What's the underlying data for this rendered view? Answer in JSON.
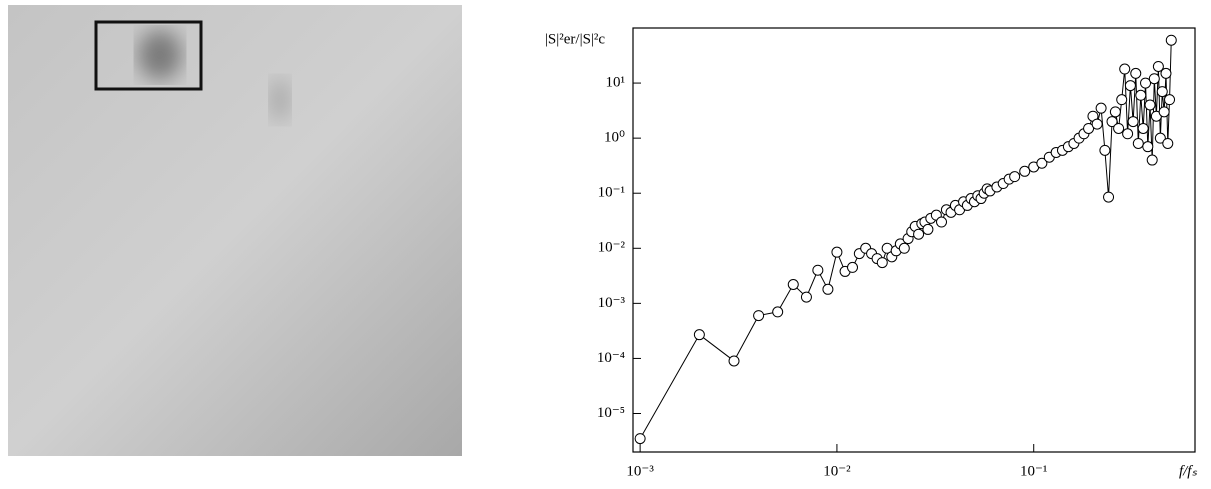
{
  "chart_data": {
    "type": "line",
    "xlabel": "f/fₛ",
    "ylabel": "|S|²er/|S|²c",
    "x_log": true,
    "y_log": true,
    "xlim": [
      0.00092,
      0.66
    ],
    "ylim": [
      2e-06,
      100
    ],
    "xticks": [
      {
        "value": 0.001,
        "label": "10⁻³"
      },
      {
        "value": 0.01,
        "label": "10⁻²"
      },
      {
        "value": 0.1,
        "label": "10⁻¹"
      }
    ],
    "yticks": [
      {
        "value": 1e-05,
        "label": "10⁻⁵"
      },
      {
        "value": 0.0001,
        "label": "10⁻⁴"
      },
      {
        "value": 0.001,
        "label": "10⁻³"
      },
      {
        "value": 0.01,
        "label": "10⁻²"
      },
      {
        "value": 0.1,
        "label": "10⁻¹"
      },
      {
        "value": 1,
        "label": "10⁰"
      },
      {
        "value": 10,
        "label": "10¹"
      }
    ],
    "color": "#000000",
    "x": [
      0.001,
      0.002,
      0.003,
      0.004,
      0.005,
      0.006,
      0.007,
      0.008,
      0.009,
      0.01,
      0.011,
      0.012,
      0.013,
      0.014,
      0.015,
      0.016,
      0.017,
      0.018,
      0.019,
      0.02,
      0.021,
      0.022,
      0.023,
      0.024,
      0.025,
      0.026,
      0.027,
      0.028,
      0.029,
      0.03,
      0.032,
      0.034,
      0.036,
      0.038,
      0.04,
      0.042,
      0.044,
      0.046,
      0.048,
      0.05,
      0.052,
      0.054,
      0.056,
      0.058,
      0.06,
      0.065,
      0.07,
      0.075,
      0.08,
      0.09,
      0.1,
      0.11,
      0.12,
      0.13,
      0.14,
      0.15,
      0.16,
      0.17,
      0.18,
      0.19,
      0.2,
      0.21,
      0.22,
      0.23,
      0.24,
      0.25,
      0.26,
      0.27,
      0.28,
      0.29,
      0.3,
      0.31,
      0.32,
      0.33,
      0.34,
      0.35,
      0.36,
      0.37,
      0.38,
      0.39,
      0.4,
      0.41,
      0.42,
      0.43,
      0.44,
      0.45,
      0.46,
      0.47,
      0.48,
      0.49,
      0.5
    ],
    "values": [
      3.5e-06,
      0.00027,
      9e-05,
      0.0006,
      0.0007,
      0.0022,
      0.0013,
      0.004,
      0.0018,
      0.0085,
      0.0038,
      0.0045,
      0.008,
      0.01,
      0.008,
      0.0065,
      0.0055,
      0.01,
      0.007,
      0.009,
      0.012,
      0.01,
      0.015,
      0.02,
      0.025,
      0.018,
      0.028,
      0.03,
      0.022,
      0.035,
      0.04,
      0.03,
      0.05,
      0.045,
      0.06,
      0.05,
      0.07,
      0.06,
      0.08,
      0.07,
      0.09,
      0.08,
      0.1,
      0.12,
      0.11,
      0.13,
      0.15,
      0.18,
      0.2,
      0.25,
      0.3,
      0.35,
      0.45,
      0.55,
      0.6,
      0.7,
      0.8,
      1.0,
      1.2,
      1.5,
      2.5,
      1.8,
      3.5,
      0.6,
      0.085,
      2.0,
      3.0,
      1.5,
      5,
      18,
      1.2,
      9,
      2,
      15,
      0.8,
      6,
      1.5,
      10,
      0.7,
      4,
      0.4,
      12,
      2.5,
      20,
      1.0,
      7,
      3,
      15,
      0.8,
      5,
      60
    ]
  }
}
